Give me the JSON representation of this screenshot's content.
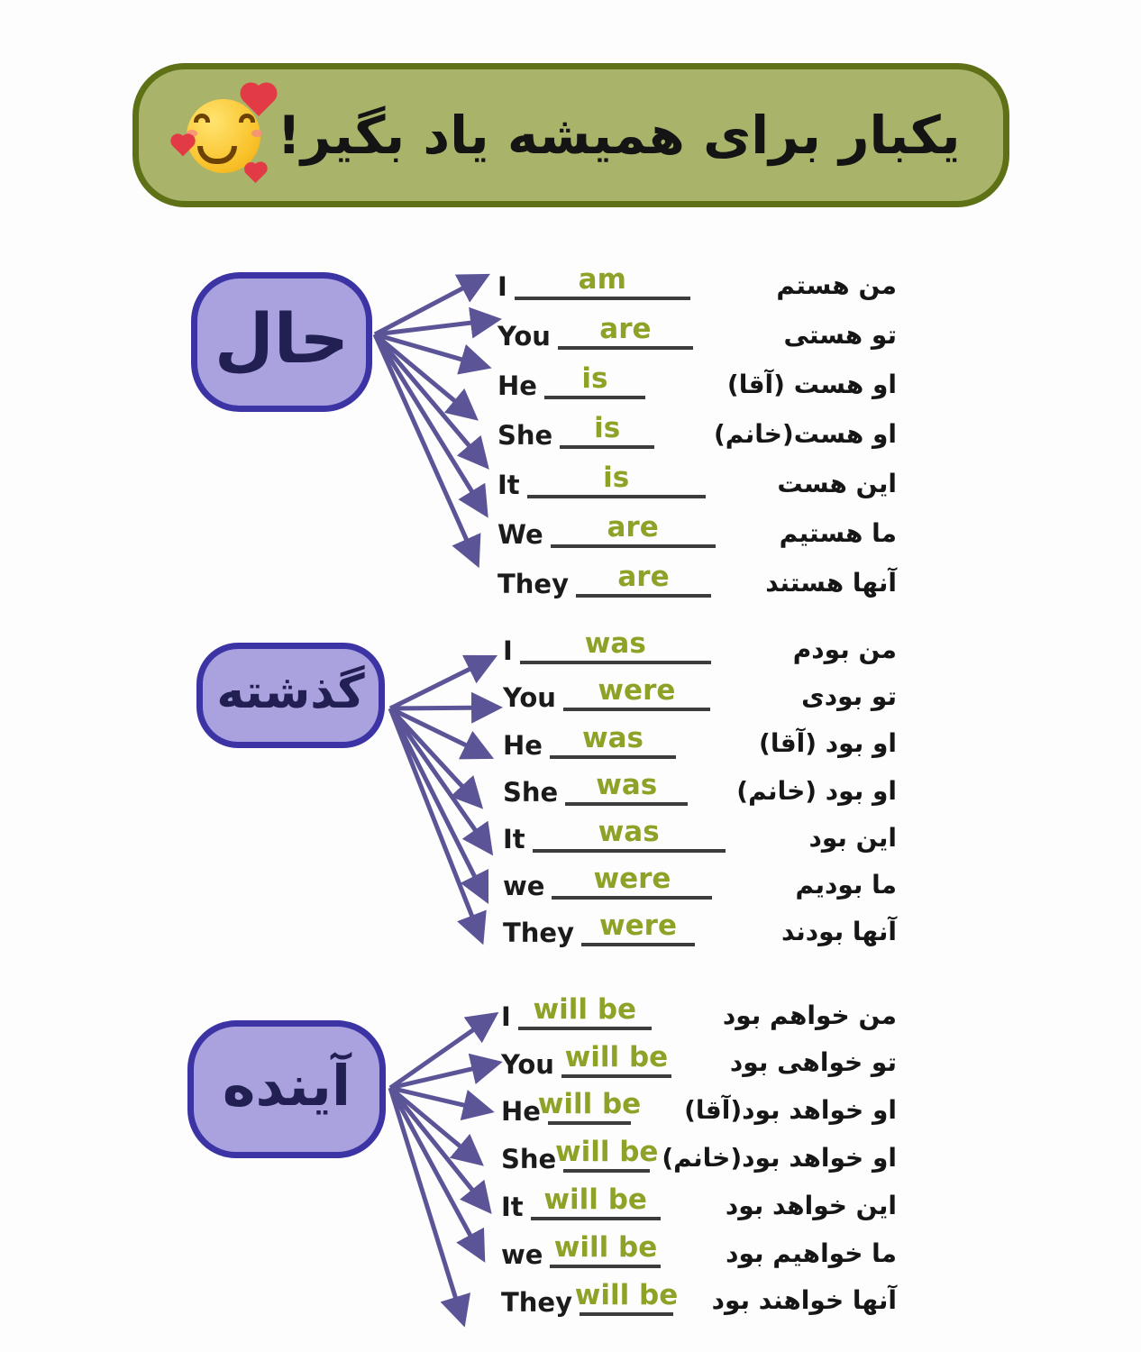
{
  "banner": {
    "text": "یکبار برای همیشه یاد بگیر!",
    "emoji": "smiling-face-with-hearts"
  },
  "sections": [
    {
      "id": "present",
      "box_label": "حال",
      "rows": [
        {
          "pronoun": "I",
          "verb": "am",
          "fa": "من هستم"
        },
        {
          "pronoun": "You",
          "verb": "are",
          "fa": "تو هستی"
        },
        {
          "pronoun": "He",
          "verb": "is",
          "fa": "او هست (آقا)"
        },
        {
          "pronoun": "She",
          "verb": "is",
          "fa": "او هست(خانم)"
        },
        {
          "pronoun": "It",
          "verb": "is",
          "fa": "این هست"
        },
        {
          "pronoun": "We",
          "verb": "are",
          "fa": "ما هستیم"
        },
        {
          "pronoun": "They",
          "verb": "are",
          "fa": "آنها هستند"
        }
      ]
    },
    {
      "id": "past",
      "box_label": "گذشته",
      "rows": [
        {
          "pronoun": "I",
          "verb": "was",
          "fa": "من بودم"
        },
        {
          "pronoun": "You",
          "verb": "were",
          "fa": "تو بودی"
        },
        {
          "pronoun": "He",
          "verb": "was",
          "fa": "او بود (آقا)"
        },
        {
          "pronoun": "She",
          "verb": "was",
          "fa": "او بود (خانم)"
        },
        {
          "pronoun": "It",
          "verb": "was",
          "fa": "این بود"
        },
        {
          "pronoun": "we",
          "verb": "were",
          "fa": "ما بودیم"
        },
        {
          "pronoun": "They",
          "verb": "were",
          "fa": "آنها بودند"
        }
      ]
    },
    {
      "id": "future",
      "box_label": "آینده",
      "rows": [
        {
          "pronoun": "I",
          "verb": "will be",
          "fa": "من خواهم بود"
        },
        {
          "pronoun": "You",
          "verb": "will be",
          "fa": "تو خواهی بود"
        },
        {
          "pronoun": "He",
          "verb": "will be",
          "fa": "او خواهد بود(آقا)"
        },
        {
          "pronoun": "She",
          "verb": "will be",
          "fa": "او خواهد بود(خانم)"
        },
        {
          "pronoun": "It",
          "verb": "will be",
          "fa": "این خواهد بود"
        },
        {
          "pronoun": "we",
          "verb": "will be",
          "fa": "ما خواهیم بود"
        },
        {
          "pronoun": "They",
          "verb": "will be",
          "fa": "آنها خواهند بود"
        }
      ]
    }
  ],
  "colors": {
    "banner_bg": "#a9b46a",
    "banner_border": "#5f7116",
    "box_bg": "#a9a2de",
    "box_border": "#3c34a5",
    "arrow": "#5b5598",
    "verb_green": "#8da227",
    "underline": "#3c3c3c",
    "text": "#1b1b1b",
    "page_bg": "#fdfdfd"
  }
}
